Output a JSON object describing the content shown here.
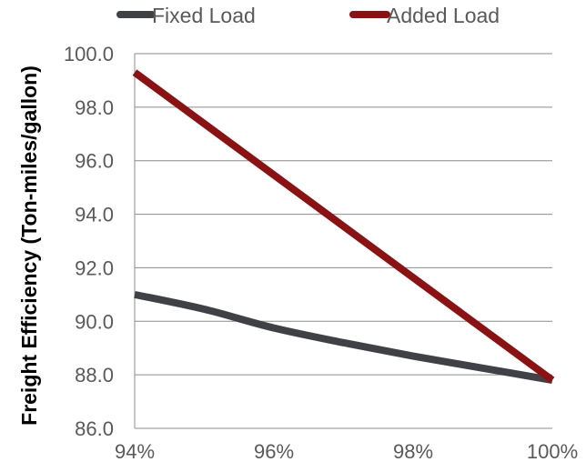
{
  "chart_data": {
    "type": "line",
    "title": "",
    "xlabel": "",
    "ylabel": "Freight Efficiency (Ton-miles/gallon)",
    "x": [
      "94%",
      "96%",
      "98%",
      "100%"
    ],
    "x_numeric": [
      94,
      96,
      98,
      100
    ],
    "xlim": [
      94,
      100
    ],
    "ylim": [
      86.0,
      100.0
    ],
    "yticks": [
      "86.0",
      "88.0",
      "90.0",
      "92.0",
      "94.0",
      "96.0",
      "98.0",
      "100.0"
    ],
    "ytick_values": [
      86,
      88,
      90,
      92,
      94,
      96,
      98,
      100
    ],
    "grid": "horizontal",
    "legend_position": "top",
    "series": [
      {
        "name": "Fixed Load",
        "color": "#3f4146",
        "x": [
          94,
          95,
          96,
          97,
          98,
          99,
          100
        ],
        "values": [
          91.0,
          90.45,
          89.75,
          89.2,
          88.7,
          88.25,
          87.8
        ]
      },
      {
        "name": "Added Load",
        "color": "#8b1113",
        "x": [
          94,
          100
        ],
        "values": [
          99.3,
          87.8
        ]
      }
    ]
  }
}
